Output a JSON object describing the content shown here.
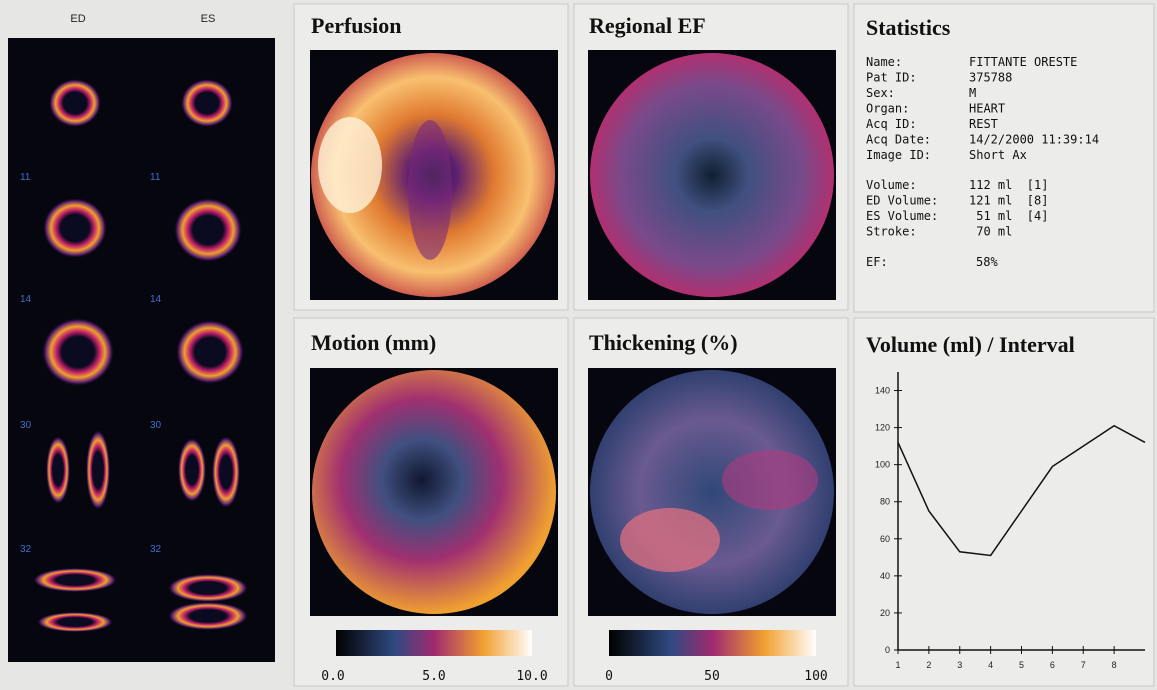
{
  "slices": {
    "ed_label": "ED",
    "es_label": "ES",
    "numbers": [
      "11",
      "14",
      "30",
      "32"
    ]
  },
  "perfusion": {
    "title": "Perfusion",
    "scale": [
      "0.0",
      "5.0",
      "10.0"
    ]
  },
  "regional_ef": {
    "title": "Regional EF"
  },
  "motion": {
    "title": "Motion (mm)"
  },
  "thickening": {
    "title": "Thickening (%)",
    "scale": [
      "0",
      "50",
      "100"
    ]
  },
  "statistics": {
    "title": "Statistics",
    "patient": [
      [
        "Name:",
        "FITTANTE ORESTE"
      ],
      [
        "Pat ID:",
        "375788"
      ],
      [
        "Sex:",
        "M"
      ],
      [
        "Organ:",
        "HEART"
      ],
      [
        "Acq ID:",
        "REST"
      ],
      [
        "Acq Date:",
        "14/2/2000 11:39:14"
      ],
      [
        "Image ID:",
        "Short Ax"
      ]
    ],
    "volumes": [
      [
        "Volume:",
        "112 ml  [1]"
      ],
      [
        "ED Volume:",
        "121 ml  [8]"
      ],
      [
        "ES Volume:",
        " 51 ml  [4]"
      ],
      [
        "Stroke:",
        " 70 ml"
      ]
    ],
    "ef": [
      "EF:",
      "58%"
    ]
  },
  "chart_data": {
    "type": "line",
    "title": "Volume (ml) / Interval",
    "x": [
      1,
      2,
      3,
      4,
      5,
      6,
      7,
      8,
      9
    ],
    "values": [
      112,
      75,
      53,
      51,
      75,
      99,
      110,
      121,
      112
    ],
    "color": "#111111",
    "xlim": [
      1,
      9
    ],
    "ylim": [
      0,
      150
    ],
    "xticks": [
      1,
      2,
      3,
      4,
      5,
      6,
      7,
      8
    ],
    "yticks": [
      0,
      20,
      40,
      60,
      80,
      100,
      120,
      140
    ]
  }
}
